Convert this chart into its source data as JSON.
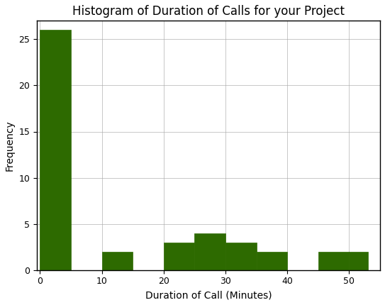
{
  "title": "Histogram of Duration of Calls for your Project",
  "xlabel": "Duration of Call (Minutes)",
  "ylabel": "Frequency",
  "bar_color": "#2d6a00",
  "edge_color": "#2d6a00",
  "bins": [
    0,
    5,
    10,
    15,
    20,
    25,
    30,
    35,
    40,
    45,
    50,
    53
  ],
  "frequencies": [
    26,
    0,
    2,
    0,
    3,
    4,
    3,
    2,
    0,
    2,
    2
  ],
  "xlim": [
    -0.5,
    55
  ],
  "ylim": [
    0,
    27
  ],
  "yticks": [
    0,
    5,
    10,
    15,
    20,
    25
  ],
  "xticks": [
    0,
    10,
    20,
    30,
    40,
    50
  ],
  "grid_color": "#aaaaaa",
  "grid_linewidth": 0.5,
  "title_fontsize": 12,
  "axis_label_fontsize": 10,
  "tick_fontsize": 9,
  "figsize": [
    5.43,
    4.3
  ],
  "dpi": 100
}
